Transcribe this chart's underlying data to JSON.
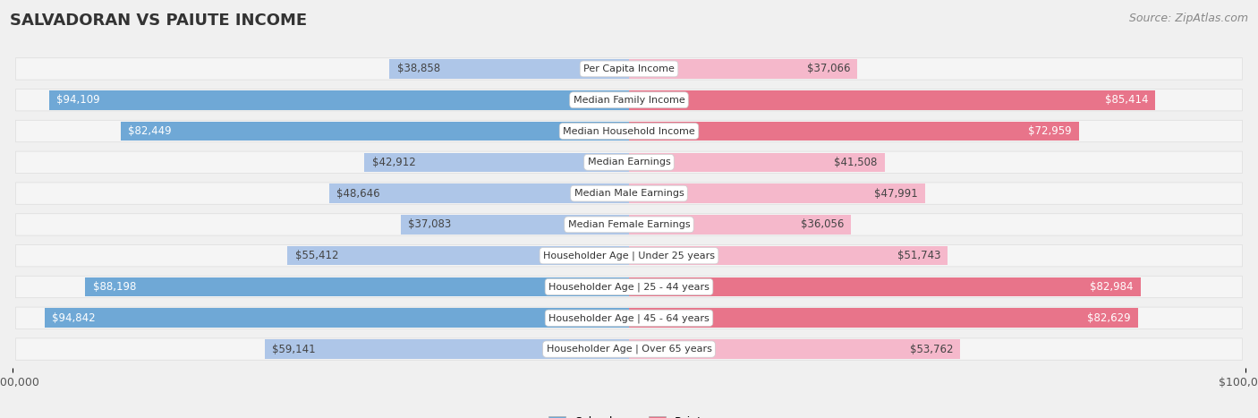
{
  "title": "SALVADORAN VS PAIUTE INCOME",
  "source": "Source: ZipAtlas.com",
  "categories": [
    "Per Capita Income",
    "Median Family Income",
    "Median Household Income",
    "Median Earnings",
    "Median Male Earnings",
    "Median Female Earnings",
    "Householder Age | Under 25 years",
    "Householder Age | 25 - 44 years",
    "Householder Age | 45 - 64 years",
    "Householder Age | Over 65 years"
  ],
  "salvadoran_values": [
    38858,
    94109,
    82449,
    42912,
    48646,
    37083,
    55412,
    88198,
    94842,
    59141
  ],
  "paiute_values": [
    37066,
    85414,
    72959,
    41508,
    47991,
    36056,
    51743,
    82984,
    82629,
    53762
  ],
  "salvadoran_color_light": "#aec6e8",
  "salvadoran_color_dark": "#6fa8d6",
  "paiute_color_light": "#f5b8cb",
  "paiute_color_dark": "#e8748a",
  "max_value": 100000,
  "background_color": "#f0f0f0",
  "row_bg_color": "#f5f5f5",
  "title_fontsize": 13,
  "source_fontsize": 9,
  "value_fontsize": 8.5,
  "label_fontsize": 8,
  "inside_label_threshold": 60000
}
